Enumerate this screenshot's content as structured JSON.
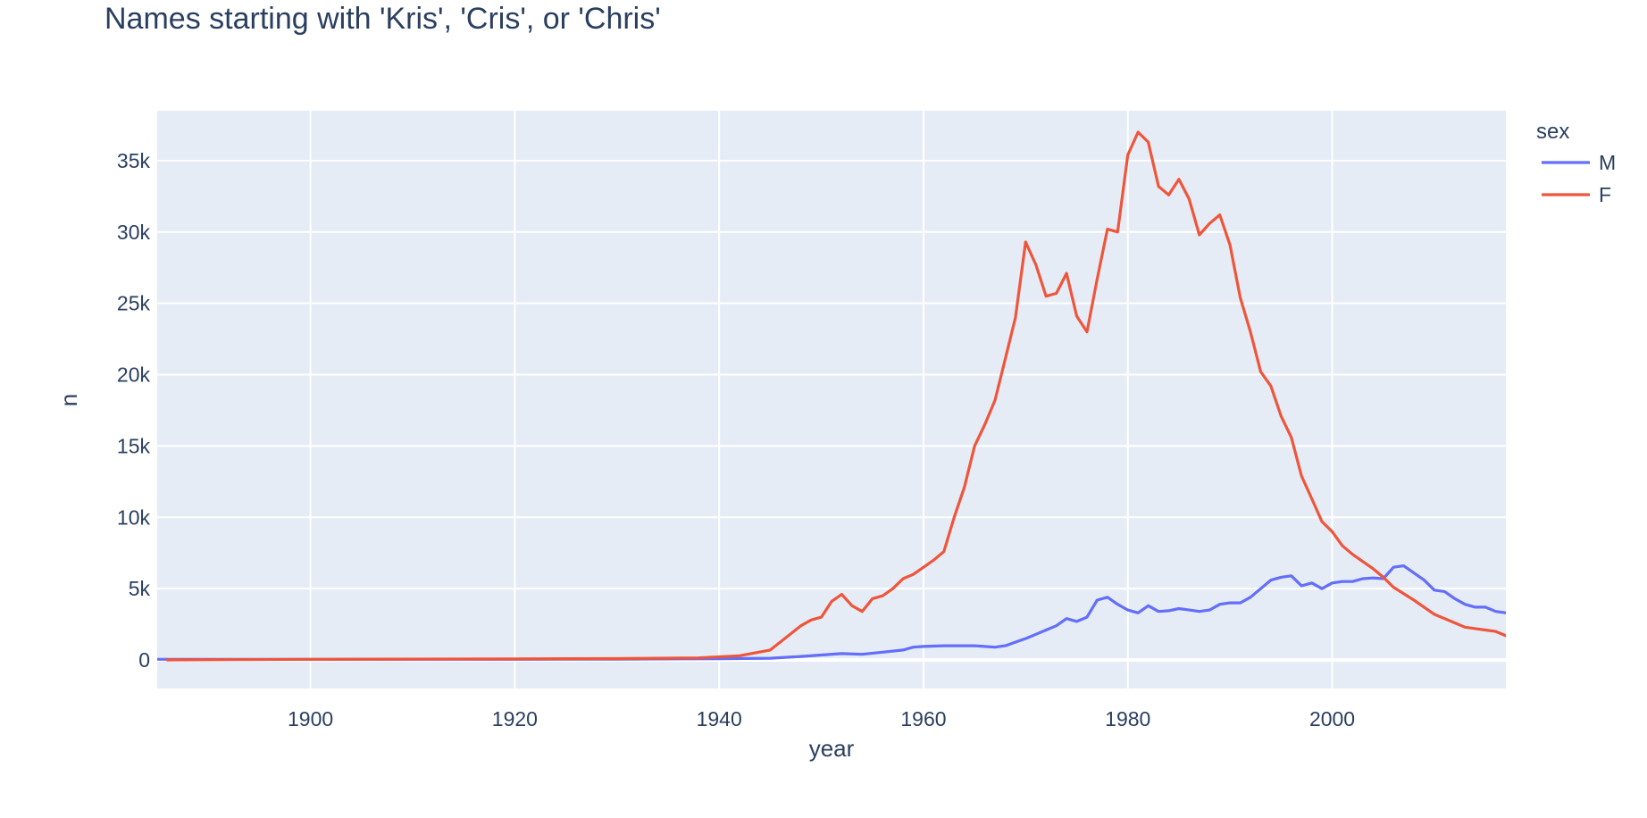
{
  "chart_data": {
    "type": "line",
    "title": "Names starting with 'Kris', 'Cris', or 'Chris'",
    "xlabel": "year",
    "ylabel": "n",
    "xlim": [
      1885,
      2017
    ],
    "ylim": [
      -2000,
      38500
    ],
    "x_ticks": [
      1900,
      1920,
      1940,
      1960,
      1980,
      2000
    ],
    "y_ticks": [
      {
        "value": 0,
        "label": "0"
      },
      {
        "value": 5000,
        "label": "5k"
      },
      {
        "value": 10000,
        "label": "10k"
      },
      {
        "value": 15000,
        "label": "15k"
      },
      {
        "value": 20000,
        "label": "20k"
      },
      {
        "value": 25000,
        "label": "25k"
      },
      {
        "value": 30000,
        "label": "30k"
      },
      {
        "value": 35000,
        "label": "35k"
      }
    ],
    "grid": true,
    "background_color": "#e5ecf6",
    "legend": {
      "title": "sex",
      "placement": "right"
    },
    "series": [
      {
        "name": "M",
        "color": "#636efa",
        "x": [
          1880,
          1900,
          1920,
          1930,
          1940,
          1945,
          1948,
          1950,
          1952,
          1954,
          1956,
          1958,
          1959,
          1960,
          1962,
          1965,
          1967,
          1968,
          1970,
          1971,
          1972,
          1973,
          1974,
          1975,
          1976,
          1977,
          1978,
          1979,
          1980,
          1981,
          1982,
          1983,
          1984,
          1985,
          1986,
          1987,
          1988,
          1989,
          1990,
          1991,
          1992,
          1993,
          1994,
          1995,
          1996,
          1997,
          1998,
          1999,
          2000,
          2001,
          2002,
          2003,
          2004,
          2005,
          2006,
          2007,
          2008,
          2009,
          2010,
          2011,
          2012,
          2013,
          2014,
          2015,
          2016,
          2017
        ],
        "y": [
          50,
          50,
          50,
          60,
          90,
          120,
          250,
          350,
          450,
          400,
          550,
          700,
          900,
          950,
          1000,
          1000,
          900,
          1000,
          1500,
          1800,
          2100,
          2400,
          2900,
          2700,
          3000,
          4200,
          4400,
          3900,
          3500,
          3300,
          3800,
          3400,
          3450,
          3600,
          3500,
          3400,
          3500,
          3900,
          4000,
          4000,
          4400,
          5000,
          5600,
          5800,
          5900,
          5200,
          5400,
          5000,
          5400,
          5500,
          5500,
          5700,
          5750,
          5700,
          6500,
          6600,
          6100,
          5600,
          4900,
          4800,
          4300,
          3900,
          3700,
          3700,
          3400,
          3300
        ]
      },
      {
        "name": "F",
        "color": "#ef553b",
        "x": [
          1886,
          1900,
          1920,
          1930,
          1938,
          1942,
          1945,
          1948,
          1949,
          1950,
          1951,
          1952,
          1953,
          1954,
          1955,
          1956,
          1957,
          1958,
          1959,
          1960,
          1961,
          1962,
          1963,
          1964,
          1965,
          1966,
          1967,
          1968,
          1969,
          1970,
          1971,
          1972,
          1973,
          1974,
          1975,
          1976,
          1977,
          1978,
          1979,
          1980,
          1981,
          1982,
          1983,
          1984,
          1985,
          1986,
          1987,
          1988,
          1989,
          1990,
          1991,
          1992,
          1993,
          1994,
          1995,
          1996,
          1997,
          1998,
          1999,
          2000,
          2001,
          2002,
          2003,
          2004,
          2005,
          2006,
          2008,
          2010,
          2011,
          2012,
          2013,
          2014,
          2015,
          2016,
          2017
        ],
        "y": [
          0,
          50,
          80,
          100,
          150,
          300,
          700,
          2400,
          2800,
          3000,
          4100,
          4600,
          3800,
          3400,
          4300,
          4500,
          5000,
          5700,
          6000,
          6500,
          7000,
          7600,
          10000,
          12100,
          15000,
          16500,
          18200,
          21100,
          24000,
          29300,
          27700,
          25500,
          25700,
          27100,
          24100,
          23000,
          26700,
          30200,
          30000,
          35400,
          37000,
          36300,
          33200,
          32600,
          33700,
          32300,
          29800,
          30600,
          31200,
          29100,
          25400,
          23000,
          20200,
          19200,
          17100,
          15600,
          12900,
          11300,
          9700,
          9000,
          8000,
          7400,
          6900,
          6400,
          5800,
          5100,
          4200,
          3200,
          2900,
          2600,
          2300,
          2200,
          2100,
          2000,
          1700
        ]
      }
    ]
  }
}
